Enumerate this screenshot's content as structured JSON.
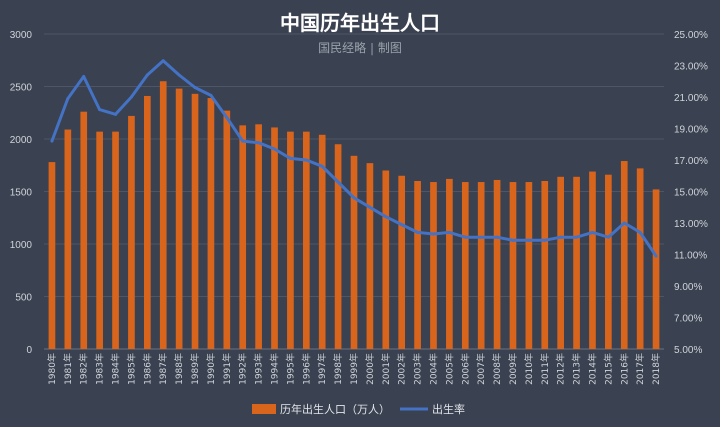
{
  "colors": {
    "background": "#3a4150",
    "bar": "#d9651c",
    "line": "#4472c4",
    "grid": "#4d5566",
    "text": "#d0d4da"
  },
  "chart_data": {
    "type": "bar",
    "title": "中国历年出生人口",
    "subtitle": "国民经略 | 制图",
    "categories": [
      "1980年",
      "1981年",
      "1982年",
      "1983年",
      "1984年",
      "1985年",
      "1986年",
      "1987年",
      "1988年",
      "1989年",
      "1990年",
      "1991年",
      "1992年",
      "1993年",
      "1994年",
      "1995年",
      "1996年",
      "1997年",
      "1998年",
      "1999年",
      "2000年",
      "2001年",
      "2002年",
      "2003年",
      "2004年",
      "2005年",
      "2006年",
      "2007年",
      "2008年",
      "2009年",
      "2010年",
      "2011年",
      "2012年",
      "2013年",
      "2014年",
      "2015年",
      "2016年",
      "2017年",
      "2018年"
    ],
    "series": [
      {
        "name": "历年出生人口（万人）",
        "chart": "bar",
        "axis": "left",
        "values": [
          1780,
          2090,
          2260,
          2070,
          2070,
          2220,
          2410,
          2550,
          2480,
          2430,
          2390,
          2270,
          2130,
          2140,
          2110,
          2070,
          2070,
          2040,
          1950,
          1840,
          1770,
          1700,
          1650,
          1600,
          1590,
          1620,
          1590,
          1590,
          1610,
          1590,
          1590,
          1600,
          1640,
          1640,
          1690,
          1660,
          1790,
          1720,
          1520
        ]
      },
      {
        "name": "出生率",
        "chart": "line",
        "axis": "right",
        "values": [
          18.2,
          20.9,
          22.3,
          20.2,
          19.9,
          21.0,
          22.4,
          23.3,
          22.4,
          21.6,
          21.1,
          19.7,
          18.2,
          18.1,
          17.7,
          17.1,
          17.0,
          16.6,
          15.6,
          14.6,
          14.0,
          13.4,
          12.9,
          12.4,
          12.3,
          12.4,
          12.1,
          12.1,
          12.1,
          11.9,
          11.9,
          11.9,
          12.1,
          12.1,
          12.4,
          12.1,
          13.0,
          12.4,
          10.9
        ]
      }
    ],
    "y_left": {
      "min": 0,
      "max": 3000,
      "ticks": [
        0,
        500,
        1000,
        1500,
        2000,
        2500,
        3000
      ]
    },
    "y_right": {
      "min": 5,
      "max": 25,
      "ticks": [
        "5.00%",
        "7.00%",
        "9.00%",
        "11.00%",
        "13.00%",
        "15.00%",
        "17.00%",
        "19.00%",
        "21.00%",
        "23.00%",
        "25.00%"
      ]
    },
    "legend": {
      "position": "bottom",
      "items": [
        "历年出生人口（万人）",
        "出生率"
      ]
    },
    "grid": true
  }
}
